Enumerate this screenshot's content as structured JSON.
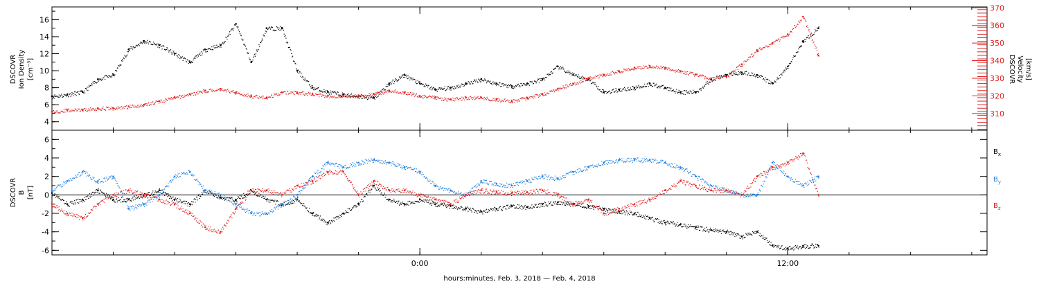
{
  "chart_data": [
    {
      "type": "scatter",
      "panel": "top",
      "left_axis": {
        "label_lines": [
          "DSCOVR",
          "Ion Density",
          "[cm⁻³]"
        ],
        "ylim": [
          3,
          17.5
        ],
        "ticks": [
          4,
          6,
          8,
          10,
          12,
          14,
          16
        ],
        "color": "#000000"
      },
      "right_axis": {
        "label_lines": [
          "DSCOVR",
          "Velocity",
          "[km/s]"
        ],
        "ylim": [
          300.5,
          370.5
        ],
        "ticks": [
          310,
          320,
          330,
          340,
          350,
          360,
          370
        ],
        "color": "#e02020"
      },
      "xlim": [
        -12,
        18.5
      ],
      "series": [
        {
          "axis": "left",
          "color": "#000000",
          "x": [
            -12.0,
            -11.5,
            -11.0,
            -10.5,
            -10.0,
            -9.5,
            -9.0,
            -8.5,
            -8.0,
            -7.5,
            -7.0,
            -6.5,
            -6.0,
            -5.5,
            -5.0,
            -4.5,
            -4.0,
            -3.5,
            -3.0,
            -2.5,
            -2.0,
            -1.5,
            -1.0,
            -0.5,
            0.0,
            0.5,
            1.0,
            1.5,
            2.0,
            2.5,
            3.0,
            3.5,
            4.0,
            4.5,
            5.0,
            5.5,
            6.0,
            6.5,
            7.0,
            7.5,
            8.0,
            8.5,
            9.0,
            9.5,
            10.0,
            10.5,
            11.0,
            11.5,
            12.0,
            12.5,
            13.0
          ],
          "y": [
            7.0,
            7.2,
            7.5,
            9.0,
            9.5,
            12.5,
            13.5,
            13.0,
            12.0,
            11.0,
            12.5,
            13.0,
            15.5,
            11.0,
            15.0,
            15.0,
            10.0,
            8.0,
            7.5,
            7.2,
            7.0,
            6.8,
            8.5,
            9.5,
            8.5,
            7.8,
            8.0,
            8.5,
            9.0,
            8.5,
            8.2,
            8.5,
            9.0,
            10.5,
            9.5,
            9.0,
            7.5,
            7.8,
            8.0,
            8.5,
            8.0,
            7.5,
            7.5,
            9.0,
            9.5,
            9.8,
            9.5,
            8.5,
            10.5,
            13.5,
            15.0
          ]
        },
        {
          "axis": "right",
          "color": "#e02020",
          "x": [
            -12.0,
            -11.5,
            -11.0,
            -10.5,
            -10.0,
            -9.5,
            -9.0,
            -8.5,
            -8.0,
            -7.5,
            -7.0,
            -6.5,
            -6.0,
            -5.5,
            -5.0,
            -4.5,
            -4.0,
            -3.5,
            -3.0,
            -2.5,
            -2.0,
            -1.5,
            -1.0,
            -0.5,
            0.0,
            0.5,
            1.0,
            1.5,
            2.0,
            2.5,
            3.0,
            3.5,
            4.0,
            4.5,
            5.0,
            5.5,
            6.0,
            6.5,
            7.0,
            7.5,
            8.0,
            8.5,
            9.0,
            9.5,
            10.0,
            10.5,
            11.0,
            11.5,
            12.0,
            12.5,
            13.0
          ],
          "y": [
            311,
            312,
            312,
            313,
            313,
            314,
            315,
            317,
            319,
            321,
            323,
            324,
            322,
            320,
            319,
            322,
            322,
            321,
            320,
            320,
            320,
            321,
            323,
            322,
            320,
            319,
            318,
            319,
            319,
            318,
            317,
            319,
            321,
            324,
            327,
            330,
            332,
            334,
            336,
            337,
            336,
            334,
            332,
            330,
            331,
            338,
            346,
            350,
            355,
            365,
            343
          ]
        }
      ]
    },
    {
      "type": "scatter",
      "panel": "bottom",
      "left_axis": {
        "label_lines": [
          "DSCOVR",
          "B",
          "[nT]"
        ],
        "ylim": [
          -6.5,
          7
        ],
        "ticks": [
          -6,
          -4,
          -2,
          0,
          2,
          4,
          6
        ],
        "color": "#000000"
      },
      "zero_line": true,
      "xlim": [
        -12,
        18.5
      ],
      "series": [
        {
          "name": "Bx",
          "label_main": "B",
          "label_sub": "x",
          "color": "#000000",
          "x": [
            -12.0,
            -11.5,
            -11.0,
            -10.5,
            -10.0,
            -9.5,
            -9.0,
            -8.5,
            -8.0,
            -7.5,
            -7.0,
            -6.5,
            -6.0,
            -5.5,
            -5.0,
            -4.5,
            -4.0,
            -3.5,
            -3.0,
            -2.5,
            -2.0,
            -1.5,
            -1.0,
            -0.5,
            0.0,
            0.5,
            1.0,
            1.5,
            2.0,
            2.5,
            3.0,
            3.5,
            4.0,
            4.5,
            5.0,
            5.5,
            6.0,
            6.5,
            7.0,
            7.5,
            8.0,
            8.5,
            9.0,
            9.5,
            10.0,
            10.5,
            11.0,
            11.5,
            12.0,
            12.5,
            13.0
          ],
          "y": [
            0.2,
            -1.0,
            -0.5,
            0.5,
            -0.5,
            -0.5,
            0.0,
            0.5,
            -0.5,
            -1.0,
            0.5,
            -0.3,
            -0.5,
            0.5,
            -0.5,
            -1.0,
            -0.5,
            -2.0,
            -3.0,
            -2.0,
            -1.0,
            1.0,
            -0.5,
            -1.0,
            -0.5,
            -1.0,
            -1.2,
            -1.5,
            -1.8,
            -1.5,
            -1.2,
            -1.3,
            -1.0,
            -0.8,
            -1.0,
            -1.2,
            -1.5,
            -1.8,
            -2.0,
            -2.5,
            -3.0,
            -3.2,
            -3.5,
            -3.8,
            -4.0,
            -4.5,
            -4.0,
            -5.5,
            -5.8,
            -5.5,
            -5.5
          ]
        },
        {
          "name": "By",
          "label_main": "B",
          "label_sub": "y",
          "color": "#2080e0",
          "x": [
            -12.0,
            -11.5,
            -11.0,
            -10.5,
            -10.0,
            -9.5,
            -9.0,
            -8.5,
            -8.0,
            -7.5,
            -7.0,
            -6.5,
            -6.0,
            -5.5,
            -5.0,
            -4.5,
            -4.0,
            -3.5,
            -3.0,
            -2.5,
            -2.0,
            -1.5,
            -1.0,
            -0.5,
            0.0,
            0.5,
            1.0,
            1.5,
            2.0,
            2.5,
            3.0,
            3.5,
            4.0,
            4.5,
            5.0,
            5.5,
            6.0,
            6.5,
            7.0,
            7.5,
            8.0,
            8.5,
            9.0,
            9.5,
            10.0,
            10.5,
            11.0,
            11.5,
            12.0,
            12.5,
            13.0
          ],
          "y": [
            0.5,
            1.5,
            2.5,
            1.5,
            2.0,
            -1.5,
            -1.0,
            0.0,
            2.0,
            2.5,
            0.5,
            0.0,
            -1.0,
            -2.0,
            -2.0,
            -1.0,
            0.0,
            2.0,
            3.5,
            3.0,
            3.5,
            3.8,
            3.5,
            3.0,
            2.5,
            1.0,
            0.5,
            0.0,
            1.5,
            1.2,
            1.0,
            1.5,
            2.0,
            1.8,
            2.5,
            3.0,
            3.5,
            3.8,
            3.8,
            3.8,
            3.5,
            3.0,
            2.0,
            1.0,
            0.5,
            0.0,
            0.0,
            3.5,
            2.0,
            1.0,
            2.0
          ]
        },
        {
          "name": "Bz",
          "label_main": "B",
          "label_sub": "z",
          "color": "#e02020",
          "x": [
            -12.0,
            -11.5,
            -11.0,
            -10.5,
            -10.0,
            -9.5,
            -9.0,
            -8.5,
            -8.0,
            -7.5,
            -7.0,
            -6.5,
            -6.0,
            -5.5,
            -5.0,
            -4.5,
            -4.0,
            -3.5,
            -3.0,
            -2.5,
            -2.0,
            -1.5,
            -1.0,
            -0.5,
            0.0,
            0.5,
            1.0,
            1.5,
            2.0,
            2.5,
            3.0,
            3.5,
            4.0,
            4.5,
            5.0,
            5.5,
            6.0,
            6.5,
            7.0,
            7.5,
            8.0,
            8.5,
            9.0,
            9.5,
            10.0,
            10.5,
            11.0,
            11.5,
            12.0,
            12.5,
            13.0
          ],
          "y": [
            -1.0,
            -2.0,
            -2.5,
            -1.0,
            0.0,
            0.5,
            0.0,
            -0.5,
            -1.0,
            -2.0,
            -3.5,
            -4.0,
            -1.5,
            0.5,
            0.5,
            0.0,
            1.0,
            1.5,
            2.5,
            2.5,
            0.0,
            1.5,
            0.5,
            0.5,
            0.0,
            -0.5,
            -1.0,
            0.0,
            0.5,
            0.3,
            0.2,
            0.3,
            0.5,
            0.0,
            -1.0,
            -0.5,
            -2.0,
            -1.5,
            -1.0,
            -0.5,
            0.5,
            1.5,
            1.0,
            0.5,
            0.5,
            0.0,
            2.0,
            3.0,
            3.5,
            4.5,
            0.0
          ]
        }
      ]
    }
  ],
  "x_axis": {
    "ticks": [
      {
        "x": 0,
        "label": "0:00"
      },
      {
        "x": 12,
        "label": "12:00"
      }
    ],
    "minor_step": 2,
    "xlabel": "hours:minutes, Feb.  3, 2018 — Feb.  4, 2018"
  }
}
